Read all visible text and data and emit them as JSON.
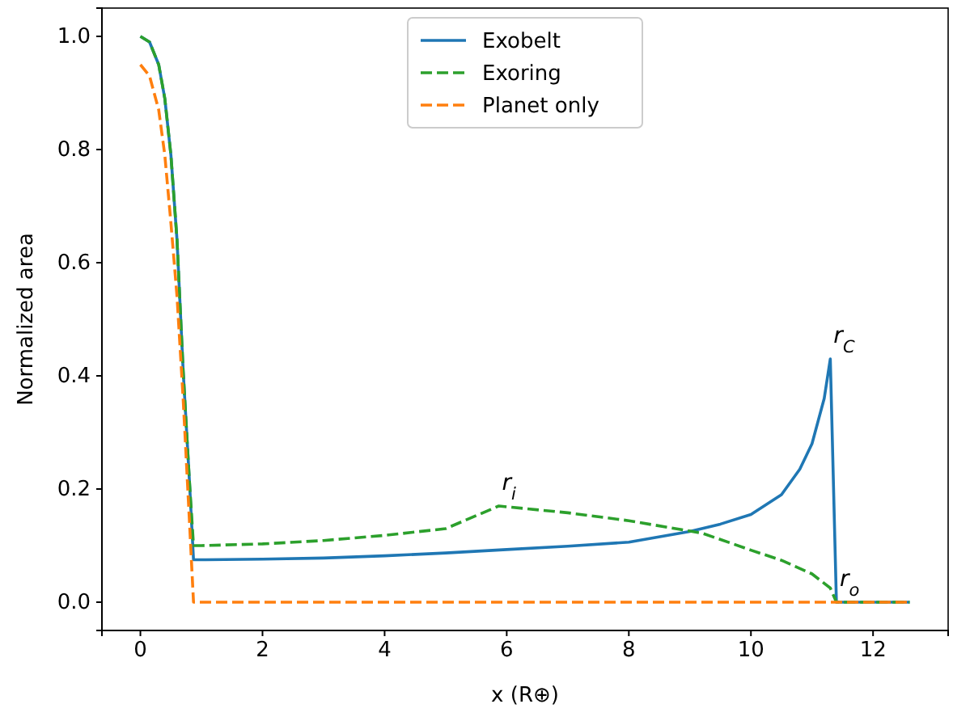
{
  "chart_data": {
    "type": "line",
    "xlabel": "x (R⊕)",
    "ylabel": "Normalized area",
    "xlim": [
      -0.63,
      13.23
    ],
    "ylim": [
      -0.05,
      1.05
    ],
    "xticks": [
      0,
      2,
      4,
      6,
      8,
      10,
      12
    ],
    "yticks": [
      {
        "value": 0,
        "label": "0.0"
      },
      {
        "value": 0.2,
        "label": "0.2"
      },
      {
        "value": 0.4,
        "label": "0.4"
      },
      {
        "value": 0.6,
        "label": "0.6"
      },
      {
        "value": 0.8,
        "label": "0.8"
      },
      {
        "value": 1,
        "label": "1.0"
      }
    ],
    "grid": false,
    "legend": "top",
    "marker": "none",
    "series": [
      {
        "name": "Exobelt",
        "color": "#1f77b4",
        "line_style": "solid",
        "x": [
          0,
          0.15,
          0.3,
          0.4,
          0.5,
          0.6,
          0.7,
          0.8,
          0.87,
          1,
          2,
          3,
          4,
          5,
          6,
          7,
          8,
          9,
          9.5,
          10,
          10.5,
          10.8,
          11,
          11.1,
          11.2,
          11.3,
          11.4,
          12.6
        ],
        "values": [
          1.0,
          0.99,
          0.95,
          0.89,
          0.79,
          0.64,
          0.41,
          0.22,
          0.075,
          0.075,
          0.076,
          0.078,
          0.082,
          0.087,
          0.093,
          0.099,
          0.106,
          0.125,
          0.138,
          0.155,
          0.19,
          0.235,
          0.28,
          0.32,
          0.36,
          0.43,
          0.0,
          0.0
        ]
      },
      {
        "name": "Exoring",
        "color": "#2ca02c",
        "line_style": "dashed",
        "x": [
          0,
          0.15,
          0.3,
          0.4,
          0.5,
          0.6,
          0.7,
          0.8,
          0.87,
          1,
          2,
          3,
          4,
          5,
          5.87,
          7,
          8,
          9.2,
          10,
          10.5,
          11,
          11.3,
          11.4,
          12.6
        ],
        "values": [
          1.0,
          0.99,
          0.95,
          0.89,
          0.79,
          0.64,
          0.41,
          0.22,
          0.1,
          0.1,
          0.103,
          0.109,
          0.118,
          0.13,
          0.17,
          0.158,
          0.144,
          0.122,
          0.092,
          0.074,
          0.05,
          0.025,
          0.0,
          0.0
        ]
      },
      {
        "name": "Planet only",
        "color": "#ff7f0e",
        "line_style": "dashed",
        "x": [
          0,
          0.15,
          0.3,
          0.4,
          0.5,
          0.6,
          0.7,
          0.8,
          0.87,
          12.6
        ],
        "values": [
          0.95,
          0.93,
          0.87,
          0.79,
          0.67,
          0.54,
          0.36,
          0.15,
          0.0,
          0.0
        ]
      }
    ],
    "annotations": [
      {
        "text": "r$_{i}$",
        "x": 5.87,
        "y": 0.17
      },
      {
        "text": "r$_{C}$",
        "x": 11.3,
        "y": 0.43
      },
      {
        "text": "r$_{o}$",
        "x": 11.4,
        "y": 0.0
      }
    ]
  }
}
